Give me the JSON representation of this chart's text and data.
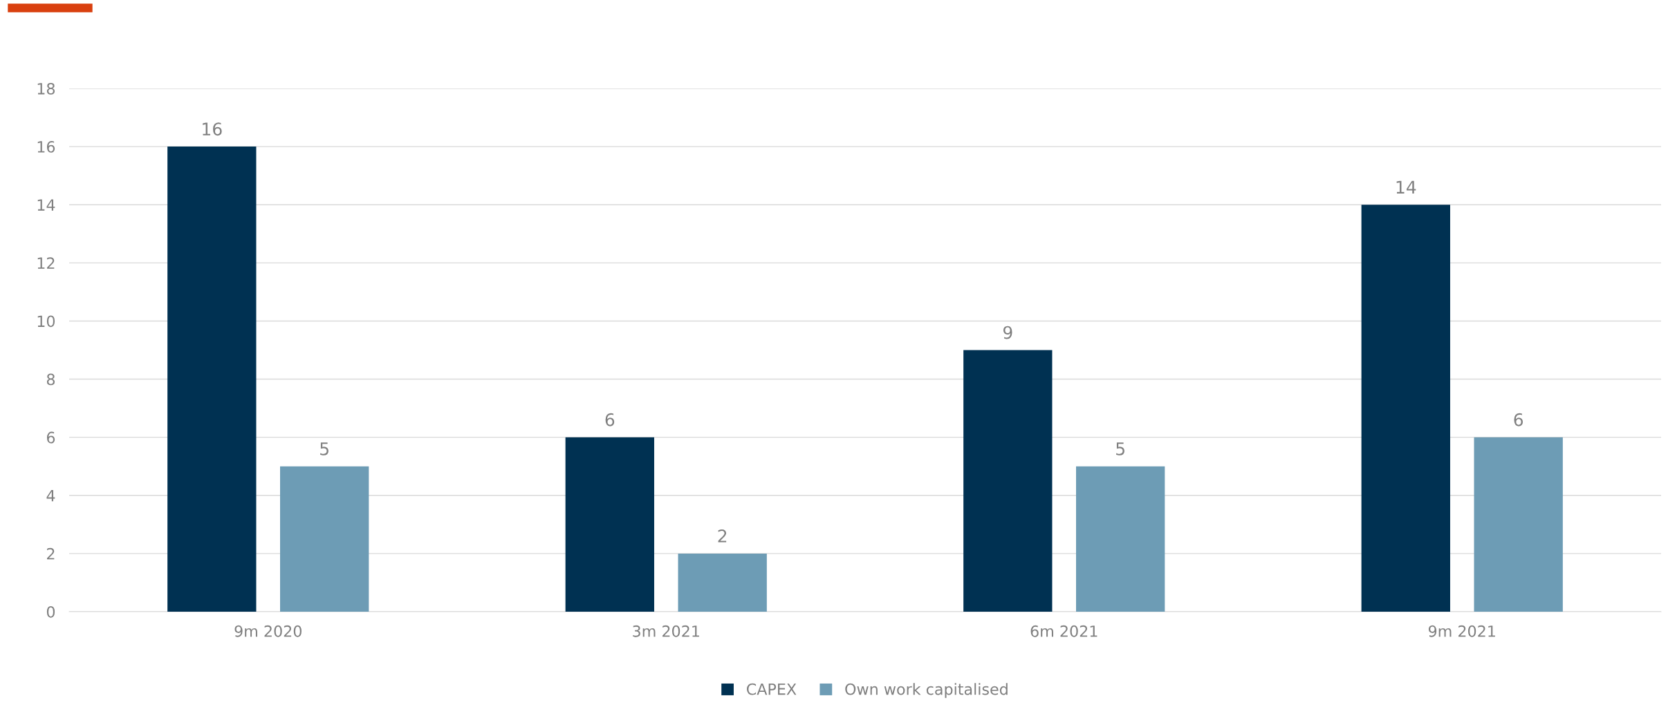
{
  "chart_data": {
    "type": "bar",
    "categories": [
      "9m 2020",
      "3m 2021",
      "6m 2021",
      "9m 2021"
    ],
    "series": [
      {
        "name": "CAPEX",
        "color": "#003152",
        "values": [
          16,
          6,
          9,
          14
        ]
      },
      {
        "name": "Own work capitalised",
        "color": "#6d9cb5",
        "values": [
          5,
          2,
          5,
          6
        ]
      }
    ],
    "ylim": [
      0,
      18
    ],
    "yticks": [
      0,
      2,
      4,
      6,
      8,
      10,
      12,
      14,
      16,
      18
    ],
    "grid": "y",
    "legend": "bottom",
    "data_labels": true
  }
}
